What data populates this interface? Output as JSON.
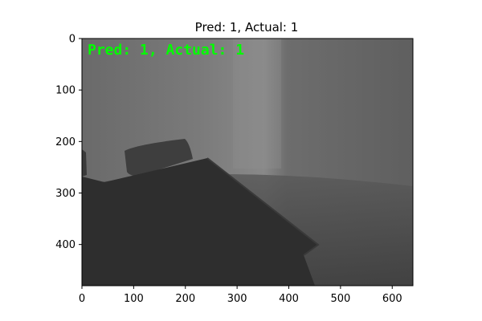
{
  "figure": {
    "title": "Pred: 1, Actual: 1"
  },
  "image": {
    "overlay_text": "Pred: 1, Actual: 1",
    "overlay_color": "#00ff00",
    "tones": {
      "background": "#6f6f6f",
      "light": "#8a8a8a",
      "mid": "#5e5e5e",
      "shadow": "#3f3f3f",
      "dark": "#333333",
      "darkest": "#2b2b2b"
    }
  },
  "axes": {
    "x_range": [
      0,
      640
    ],
    "y_range": [
      480,
      0
    ],
    "x_ticks": [
      {
        "value": 0,
        "label": "0"
      },
      {
        "value": 100,
        "label": "100"
      },
      {
        "value": 200,
        "label": "200"
      },
      {
        "value": 300,
        "label": "300"
      },
      {
        "value": 400,
        "label": "400"
      },
      {
        "value": 500,
        "label": "500"
      },
      {
        "value": 600,
        "label": "600"
      }
    ],
    "y_ticks": [
      {
        "value": 0,
        "label": "0"
      },
      {
        "value": 100,
        "label": "100"
      },
      {
        "value": 200,
        "label": "200"
      },
      {
        "value": 300,
        "label": "300"
      },
      {
        "value": 400,
        "label": "400"
      }
    ]
  }
}
